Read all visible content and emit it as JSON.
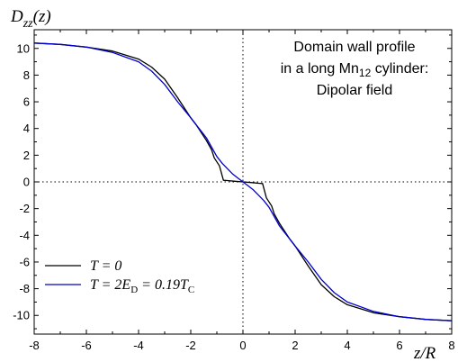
{
  "chart_data": {
    "type": "line",
    "ylabel": {
      "main": "D",
      "sub": "zz",
      "tail": "(z)"
    },
    "xlabel": "z/R",
    "xlim": [
      -8,
      8
    ],
    "ylim": [
      -11.4,
      11.4
    ],
    "xticks": [
      -8,
      -6,
      -4,
      -2,
      0,
      2,
      4,
      6,
      8
    ],
    "yticks": [
      10,
      8,
      6,
      4,
      2,
      0,
      -2,
      -4,
      -6,
      -8,
      -10
    ],
    "grid": false,
    "legend_position": "bottom-left",
    "annotation": {
      "line1": "Domain wall profile",
      "line2_pre": "in a long Mn",
      "line2_sub": "12",
      "line2_post": " cylinder:",
      "line3": "Dipolar field"
    },
    "legend": [
      {
        "label": "T = 0"
      },
      {
        "label": "T = 2E",
        "sub": "D",
        "mid": " = 0.19T",
        "sub2": "C"
      }
    ],
    "colors": {
      "series_t0": "#000000",
      "series_t2": "#0000cc",
      "axis": "#000000"
    },
    "series": [
      {
        "name": "T = 0",
        "x": [
          -8,
          -7,
          -6,
          -5,
          -4,
          -3.5,
          -3,
          -2.5,
          -2,
          -1.8,
          -1.6,
          -1.4,
          -1.2,
          -1.1,
          -0.9,
          -0.75,
          -0.6,
          -0.3,
          0,
          0.3,
          0.6,
          0.75,
          0.9,
          1.1,
          1.2,
          1.4,
          1.6,
          1.8,
          2,
          2.5,
          3,
          3.5,
          4,
          5,
          6,
          7,
          8
        ],
        "y": [
          10.4,
          10.3,
          10.1,
          9.8,
          9.2,
          8.6,
          7.7,
          6.3,
          4.8,
          4.3,
          3.7,
          3.1,
          2.4,
          1.8,
          1.2,
          0.12,
          0.1,
          0.05,
          0,
          -0.05,
          -0.1,
          -0.12,
          -1.2,
          -1.8,
          -2.4,
          -3.1,
          -3.7,
          -4.3,
          -4.8,
          -6.3,
          -7.7,
          -8.6,
          -9.2,
          -9.8,
          -10.1,
          -10.3,
          -10.4
        ]
      },
      {
        "name": "T = 2E_D = 0.19T_C",
        "x": [
          -8,
          -7,
          -6,
          -5,
          -4,
          -3.5,
          -3,
          -2.5,
          -2,
          -1.8,
          -1.6,
          -1.4,
          -1.2,
          -1.0,
          -0.8,
          -0.6,
          -0.4,
          -0.2,
          0,
          0.2,
          0.4,
          0.6,
          0.8,
          1.0,
          1.2,
          1.4,
          1.6,
          1.8,
          2,
          2.5,
          3,
          3.5,
          4,
          5,
          6,
          7,
          8
        ],
        "y": [
          10.4,
          10.3,
          10.1,
          9.7,
          9.0,
          8.3,
          7.3,
          6.0,
          4.8,
          4.3,
          3.8,
          3.3,
          2.6,
          1.9,
          1.4,
          1.0,
          0.6,
          0.3,
          0,
          -0.3,
          -0.6,
          -1.0,
          -1.4,
          -1.9,
          -2.6,
          -3.3,
          -3.8,
          -4.3,
          -4.8,
          -6.0,
          -7.3,
          -8.3,
          -9.0,
          -9.7,
          -10.1,
          -10.3,
          -10.4
        ]
      }
    ]
  }
}
